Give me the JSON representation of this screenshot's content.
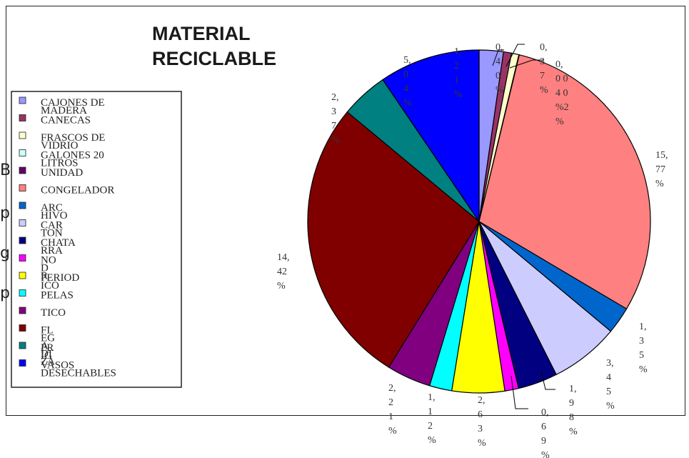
{
  "chart_data": {
    "type": "pie",
    "title": "MATERIAL RECICLABLE",
    "title_lines": [
      "MATERIAL",
      "RECICLABLE"
    ],
    "legend_position": "left",
    "unit": "%",
    "slices": [
      {
        "name": "CAJONES DE MADERA",
        "legend_lines": [
          "CAJONES DE",
          "MADERA"
        ],
        "value": 1.21,
        "label_lines": [
          "1,",
          "2",
          "1",
          "%"
        ],
        "color": "#9999ff"
      },
      {
        "name": "CANECAS",
        "legend_lines": [
          "CANECAS"
        ],
        "value": 0.4,
        "label_lines": [
          "0,",
          "4",
          "0",
          "%"
        ],
        "color": "#993366"
      },
      {
        "name": "FRASCOS DE VIDRIO",
        "legend_lines": [
          "FRASCOS DE",
          "VIDRIO"
        ],
        "value": 0.37,
        "label_lines": [
          "0,",
          "3",
          "7",
          "%"
        ],
        "color": "#ffffcc"
      },
      {
        "name": "GALONES 20 LITROS",
        "legend_lines": [
          "GALONES 20",
          "LITROS"
        ],
        "value": 0.02,
        "label_lines": [
          "0,",
          "0 0",
          "4 0",
          "%2",
          "%"
        ],
        "color": "#ccffff"
      },
      {
        "name": "UNIDAD",
        "legend_lines": [
          "UNIDAD"
        ],
        "value": 0.0,
        "label_lines": [],
        "color": "#660066"
      },
      {
        "name": "CONGELADOR",
        "legend_lines": [
          "CONGELADOR"
        ],
        "value": 15.77,
        "label_lines": [
          "15,",
          "77",
          "%"
        ],
        "color": "#ff8080"
      },
      {
        "name": "ARCHIVO",
        "legend_lines": [
          "ARC",
          "HIVO"
        ],
        "value": 1.35,
        "label_lines": [
          "1,",
          "3",
          "5",
          "%"
        ],
        "color": "#0066cc"
      },
      {
        "name": "CARTON",
        "legend_lines": [
          "CAR",
          "TON"
        ],
        "value": 3.45,
        "label_lines": [
          "3,",
          "4",
          "5",
          "%"
        ],
        "color": "#ccccff"
      },
      {
        "name": "CHATARRA",
        "legend_lines": [
          "CHATA",
          "RRA"
        ],
        "value": 1.98,
        "label_lines": [
          "1,",
          "9",
          "8",
          "%"
        ],
        "color": "#000080"
      },
      {
        "name": "NODRIZA",
        "legend_lines": [
          "NO",
          "D",
          "R"
        ],
        "value": 0.69,
        "label_lines": [
          "0,",
          "6",
          "9",
          "%"
        ],
        "color": "#ff00ff"
      },
      {
        "name": "PERIODICO",
        "legend_lines": [
          "PERIOD",
          "ICO"
        ],
        "value": 2.63,
        "label_lines": [
          "2,",
          "6",
          "3",
          "%"
        ],
        "color": "#ffff00"
      },
      {
        "name": "PELAS",
        "legend_lines": [
          "PELAS"
        ],
        "value": 1.12,
        "label_lines": [
          "1,",
          "1",
          "2",
          "%"
        ],
        "color": "#00ffff"
      },
      {
        "name": "PLASTICO",
        "legend_lines": [
          "TICO"
        ],
        "value": 2.21,
        "label_lines": [
          "2,",
          "2",
          "1",
          "%"
        ],
        "color": "#800080"
      },
      {
        "name": "PLEGADIZA",
        "legend_lines": [
          "FL",
          "EG",
          "A",
          "DI",
          "ZA"
        ],
        "value": 14.42,
        "label_lines": [
          "14,",
          "42",
          "%"
        ],
        "color": "#800000"
      },
      {
        "name": "PR",
        "legend_lines": [
          "PR",
          "IG"
        ],
        "value": 2.37,
        "label_lines": [
          "2,",
          "3",
          "7",
          "%"
        ],
        "color": "#008080"
      },
      {
        "name": "VASOS DESECHABLES",
        "legend_lines": [
          "VASOS",
          "DESECHABLES"
        ],
        "value": 5.04,
        "label_lines": [
          "5,",
          "0",
          "4",
          "%"
        ],
        "color": "#0000ff"
      }
    ]
  },
  "bleed_chars": [
    "B",
    "p",
    "g",
    "p"
  ]
}
